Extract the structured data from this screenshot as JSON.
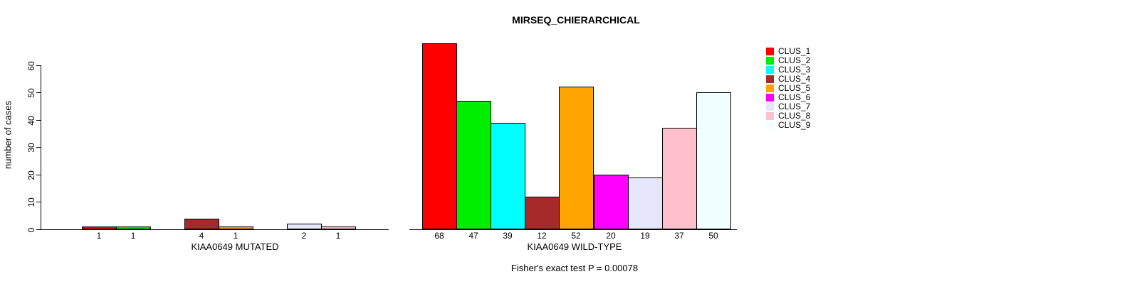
{
  "chart_data": {
    "type": "bar",
    "title": "MIRSEQ_CHIERARCHICAL",
    "ylabel": "number of cases",
    "ylim": [
      0,
      60
    ],
    "yticks": [
      0,
      10,
      20,
      30,
      40,
      50,
      60
    ],
    "grid": false,
    "legend_position": "right",
    "clusters": [
      {
        "label": "CLUS_1",
        "color": "#FF0000"
      },
      {
        "label": "CLUS_2",
        "color": "#00EE00"
      },
      {
        "label": "CLUS_3",
        "color": "#00FFFF"
      },
      {
        "label": "CLUS_4",
        "color": "#A52A2A"
      },
      {
        "label": "CLUS_5",
        "color": "#FFA500"
      },
      {
        "label": "CLUS_6",
        "color": "#FF00FF"
      },
      {
        "label": "CLUS_7",
        "color": "#E6E6FA"
      },
      {
        "label": "CLUS_8",
        "color": "#FFC0CB"
      },
      {
        "label": "CLUS_9",
        "color": "#F0FFFF"
      }
    ],
    "panels": [
      {
        "xlabel": "KIAA0649 MUTATED",
        "categories": [
          "CLUS_1",
          "CLUS_2",
          "CLUS_3",
          "CLUS_4",
          "CLUS_5",
          "CLUS_6",
          "CLUS_7",
          "CLUS_8",
          "CLUS_9"
        ],
        "values": [
          1,
          1,
          0,
          4,
          1,
          0,
          2,
          1,
          0
        ]
      },
      {
        "xlabel": "KIAA0649 WILD-TYPE",
        "categories": [
          "CLUS_1",
          "CLUS_2",
          "CLUS_3",
          "CLUS_4",
          "CLUS_5",
          "CLUS_6",
          "CLUS_7",
          "CLUS_8",
          "CLUS_9"
        ],
        "values": [
          68,
          47,
          39,
          12,
          52,
          20,
          19,
          37,
          50
        ]
      }
    ],
    "footnote": "Fisher's exact test P = 0.00078"
  }
}
